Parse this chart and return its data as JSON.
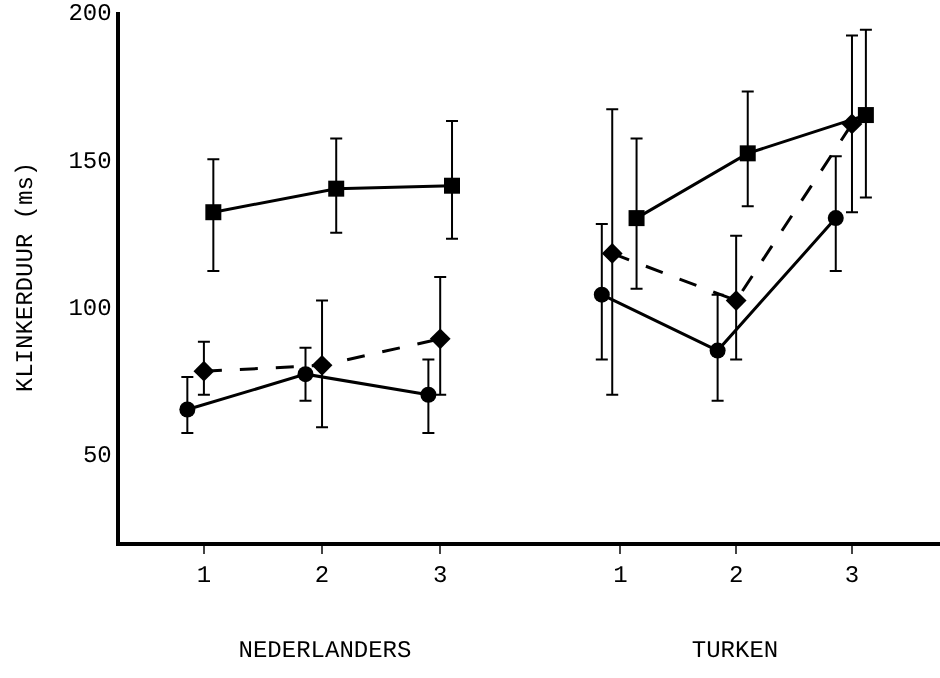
{
  "chart_data": [
    {
      "type": "line",
      "ylabel": "KLINKERDUUR (ms)",
      "xlabel": "NEDERLANDERS",
      "xlim": [
        0.29,
        3.76
      ],
      "xticks": [
        1,
        2,
        3
      ],
      "ylim": [
        20,
        200
      ],
      "yticks": [
        50,
        100,
        150,
        200
      ],
      "series": [
        {
          "color": "#000000",
          "marker": "square",
          "line_style": "solid",
          "x": [
            1.08,
            2.12,
            3.1
          ],
          "values": [
            132,
            140,
            141
          ],
          "errors": [
            [
              112,
              150
            ],
            [
              125,
              157
            ],
            [
              123,
              163
            ]
          ]
        },
        {
          "color": "#000000",
          "marker": "circle",
          "line_style": "solid",
          "x": [
            0.86,
            1.86,
            2.9
          ],
          "values": [
            65,
            77,
            70
          ],
          "errors": [
            [
              57,
              76
            ],
            [
              68,
              86
            ],
            [
              57,
              82
            ]
          ]
        },
        {
          "color": "#000000",
          "marker": "diamond",
          "line_style": "dashed",
          "x": [
            1.0,
            2.0,
            3.0
          ],
          "values": [
            78,
            80,
            89
          ],
          "errors": [
            [
              70,
              88
            ],
            [
              59,
              102
            ],
            [
              70,
              110
            ]
          ]
        }
      ]
    },
    {
      "type": "line",
      "xlabel": "TURKEN",
      "tick_labels": "x",
      "xlim": [
        0.22,
        3.76
      ],
      "xticks": [
        1,
        2,
        3
      ],
      "ylim": [
        20,
        200
      ],
      "series": [
        {
          "color": "#000000",
          "marker": "square",
          "line_style": "solid",
          "x": [
            1.14,
            2.1,
            3.12
          ],
          "values": [
            130,
            152,
            165
          ],
          "errors": [
            [
              106,
              157
            ],
            [
              134,
              173
            ],
            [
              137,
              194
            ]
          ]
        },
        {
          "color": "#000000",
          "marker": "circle",
          "line_style": "solid",
          "x": [
            0.84,
            1.84,
            2.86
          ],
          "values": [
            104,
            85,
            130
          ],
          "errors": [
            [
              82,
              128
            ],
            [
              68,
              104
            ],
            [
              112,
              151
            ]
          ]
        },
        {
          "color": "#000000",
          "marker": "diamond",
          "line_style": "dashed",
          "x": [
            0.93,
            2.0,
            3.0
          ],
          "values": [
            118,
            102,
            162
          ],
          "errors": [
            [
              70,
              167
            ],
            [
              82,
              124
            ],
            [
              132,
              192
            ]
          ]
        }
      ]
    }
  ]
}
